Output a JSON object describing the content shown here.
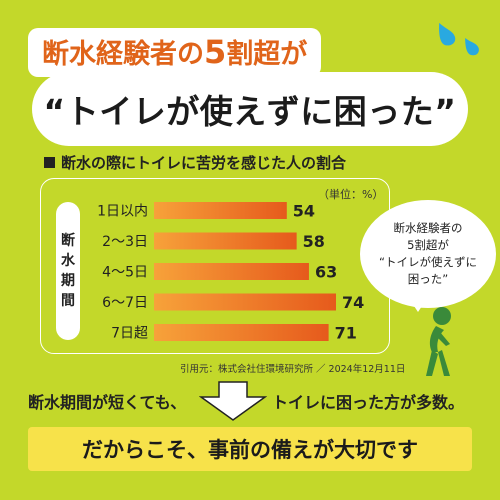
{
  "headline": {
    "line1_prefix": "断水経験者の",
    "line1_strong": "5",
    "line1_suffix": "割超が",
    "line2": "“トイレが使えずに困った”"
  },
  "chart_data": {
    "type": "bar",
    "title": "断水の際にトイレに苦労を感じた人の割合",
    "unit_label": "（単位：%）",
    "axis_label": [
      "断",
      "水",
      "期",
      "間"
    ],
    "categories": [
      "1日以内",
      "2〜3日",
      "4〜5日",
      "6〜7日",
      "7日超"
    ],
    "values": [
      54,
      58,
      63,
      74,
      71
    ],
    "value_labels": [
      "54",
      "58",
      "63",
      "74",
      "71"
    ],
    "xlim": [
      0,
      74
    ],
    "colors": {
      "bar_start": "#f7a23a",
      "bar_end": "#e65a1c"
    }
  },
  "bubble": {
    "line1": "断水経験者の",
    "line2": "5割超が",
    "line3": "“トイレが使えずに",
    "line4": "困った”"
  },
  "source": "引用元：株式会社住環境研究所 ／ 2024年12月11日",
  "message": {
    "left": "断水期間が短くても、",
    "right": "トイレに困った方が多数。"
  },
  "conclusion": "だからこそ、事前の備えが大切です",
  "colors": {
    "background": "#c3d82a",
    "accent": "#e0641a",
    "conclusion_bg": "#f7e24a",
    "drops": "#29a9e0"
  },
  "icons": {
    "drops": "sweat-drops-icon",
    "person": "person-needs-toilet-icon",
    "arrow": "down-arrow-icon"
  }
}
